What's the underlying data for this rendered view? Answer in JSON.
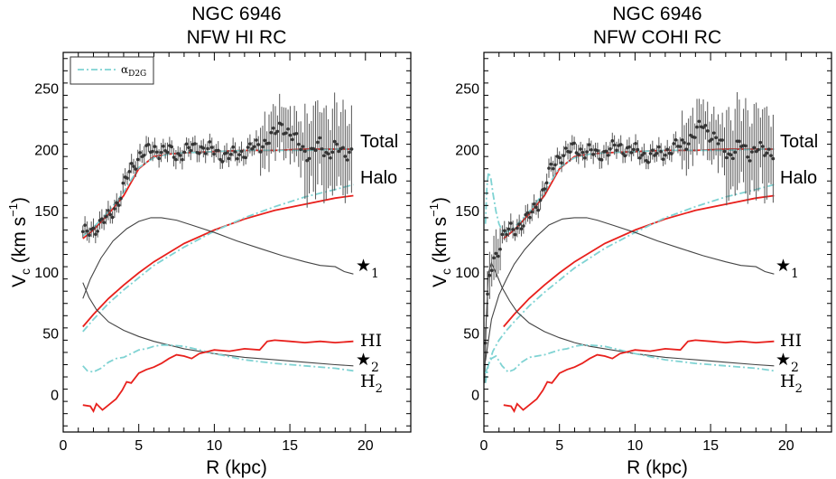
{
  "chart_data": [
    {
      "type": "line",
      "title_line1": "NGC 6946",
      "title_line2": "NFW HI RC",
      "xlabel": "R (kpc)",
      "ylabel": "V",
      "ylabel_sub": "c",
      "ylabel_units": " (km s",
      "ylabel_exp": "−1",
      "ylabel_close": ")",
      "xlim": [
        0,
        23
      ],
      "ylim": [
        -30,
        280
      ],
      "xticks": [
        "0",
        "5",
        "10",
        "15",
        "20"
      ],
      "yticks": [
        "0",
        "50",
        "100",
        "150",
        "200",
        "250"
      ],
      "legend": {
        "label": "α",
        "label_sub": "D2G",
        "color": "#7fd3d3",
        "position": "top-left"
      },
      "annotations": {
        "total": "Total",
        "halo": "Halo",
        "star1": "★",
        "star1_sub": "1",
        "star2": "★",
        "star2_sub": "2",
        "hi": "HI",
        "h2": "H",
        "h2_sub": "2"
      },
      "colors": {
        "fit_red": "#e8201c",
        "fit_teal": "#7fd3d3",
        "component": "#444444",
        "data": "#333333"
      },
      "data_points": {
        "x_start": 1.3,
        "x_end": 19.2,
        "step": 0.14
      },
      "series": [
        {
          "name": "Total (red)",
          "color": "#e8201c",
          "x": [
            1.3,
            2,
            3,
            4,
            5,
            6,
            7,
            8,
            10,
            12,
            14,
            16,
            18,
            19.2
          ],
          "y": [
            128,
            135,
            148,
            163,
            185,
            195,
            197,
            198,
            199,
            200,
            200,
            201,
            201,
            201
          ]
        },
        {
          "name": "Total (α_D2G)",
          "color": "#7fd3d3",
          "dash": true,
          "x": [
            1.3,
            2,
            3,
            4,
            5,
            6,
            7,
            8,
            10,
            12,
            14,
            16,
            18,
            19.2
          ],
          "y": [
            130,
            137,
            150,
            166,
            186,
            194,
            197,
            198,
            199,
            200,
            200,
            200,
            201,
            201
          ]
        },
        {
          "name": "Halo (red)",
          "color": "#e8201c",
          "x": [
            1.3,
            2,
            3,
            4,
            5,
            6,
            8,
            10,
            12,
            14,
            16,
            18,
            19.2
          ],
          "y": [
            56,
            66,
            79,
            90,
            100,
            109,
            124,
            135,
            144,
            151,
            156,
            161,
            163
          ]
        },
        {
          "name": "Halo (α_D2G)",
          "color": "#7fd3d3",
          "dash": true,
          "x": [
            1.3,
            2,
            3,
            4,
            5,
            6,
            8,
            10,
            12,
            14,
            16,
            18,
            19.2
          ],
          "y": [
            52,
            62,
            75,
            86,
            96,
            106,
            121,
            134,
            145,
            154,
            162,
            168,
            172
          ]
        },
        {
          "name": "Stellar disk 1",
          "color": "#444444",
          "x": [
            1.3,
            1.8,
            2.5,
            3.3,
            4.2,
            5,
            5.8,
            6.5,
            7.5,
            8.5,
            10,
            11.5,
            13,
            14.5,
            16,
            17,
            18,
            18.6,
            19.2
          ],
          "y": [
            79,
            95,
            112,
            126,
            136,
            142,
            145,
            145,
            143,
            139,
            133,
            126,
            120,
            114,
            109,
            106,
            105,
            101,
            99
          ]
        },
        {
          "name": "Stellar bulge 2",
          "color": "#444444",
          "x": [
            1.3,
            1.7,
            2.2,
            3,
            4,
            5,
            6,
            7,
            8,
            10,
            12,
            14,
            16,
            18,
            19.2
          ],
          "y": [
            92,
            80,
            70,
            60,
            53,
            48,
            44,
            41,
            38,
            34,
            31,
            29,
            27,
            25,
            24
          ]
        },
        {
          "name": "H2 (α_D2G)",
          "color": "#7fd3d3",
          "dash": true,
          "x": [
            1.3,
            1.6,
            2,
            2.5,
            3,
            3.5,
            4,
            4.5,
            5,
            5.5,
            6,
            6.5,
            7,
            8,
            9,
            10,
            12,
            14,
            16,
            18,
            19.2
          ],
          "y": [
            24,
            20,
            19,
            22,
            27,
            30,
            31,
            34,
            37,
            38,
            40,
            41,
            41,
            40,
            37,
            34,
            29,
            26,
            24,
            22,
            20
          ]
        },
        {
          "name": "HI (red)",
          "color": "#e8201c",
          "x": [
            1.3,
            1.8,
            2,
            2.2,
            2.6,
            3,
            3.5,
            3.9,
            4.2,
            4.5,
            5,
            5.5,
            6,
            6.5,
            7,
            7.5,
            8,
            8.5,
            9,
            10,
            11,
            12,
            13,
            13.5,
            14,
            15,
            16,
            17,
            18,
            19.2
          ],
          "y": [
            -8,
            -9,
            -13,
            -7,
            -12,
            -8,
            -3,
            4,
            11,
            10,
            18,
            21,
            23,
            26,
            30,
            33,
            32,
            30,
            34,
            37,
            36,
            38,
            37,
            44,
            45,
            44,
            43,
            44,
            43,
            44
          ]
        }
      ]
    },
    {
      "type": "line",
      "title_line1": "NGC 6946",
      "title_line2": "NFW COHI RC",
      "xlabel": "R (kpc)",
      "ylabel": "V",
      "ylabel_sub": "c",
      "ylabel_units": " (km s",
      "ylabel_exp": "−1",
      "ylabel_close": ")",
      "xlim": [
        0,
        23
      ],
      "ylim": [
        -30,
        280
      ],
      "xticks": [
        "0",
        "5",
        "10",
        "15",
        "20"
      ],
      "yticks": [
        "0",
        "50",
        "100",
        "150",
        "200",
        "250"
      ],
      "annotations": {
        "total": "Total",
        "halo": "Halo",
        "star1": "★",
        "star1_sub": "1",
        "star2": "★",
        "star2_sub": "2",
        "hi": "HI",
        "h2": "H",
        "h2_sub": "2"
      },
      "colors": {
        "fit_red": "#e8201c",
        "fit_teal": "#7fd3d3",
        "component": "#444444",
        "data": "#333333"
      },
      "data_points": {
        "x_start": 0.1,
        "x_end": 19.2,
        "step": 0.14
      },
      "series": [
        {
          "name": "Total (red)",
          "color": "#e8201c",
          "x": [
            1.3,
            2,
            3,
            4,
            5,
            6,
            7,
            8,
            10,
            12,
            14,
            16,
            18,
            19.2
          ],
          "y": [
            128,
            135,
            148,
            163,
            185,
            195,
            197,
            198,
            199,
            200,
            200,
            201,
            201,
            201
          ]
        },
        {
          "name": "Total (α_D2G)",
          "color": "#7fd3d3",
          "dash": true,
          "x": [
            0.1,
            0.2,
            0.3,
            0.45,
            0.6,
            0.8,
            1.0,
            1.3,
            2,
            3,
            4,
            5,
            6,
            7,
            8,
            10,
            12,
            14,
            16,
            18,
            19.2
          ],
          "y": [
            140,
            170,
            182,
            178,
            165,
            150,
            140,
            132,
            137,
            150,
            166,
            186,
            194,
            197,
            198,
            199,
            200,
            200,
            200,
            201,
            201
          ]
        },
        {
          "name": "Halo (red)",
          "color": "#e8201c",
          "x": [
            1.3,
            2,
            3,
            4,
            5,
            6,
            8,
            10,
            12,
            14,
            16,
            18,
            19.2
          ],
          "y": [
            56,
            66,
            79,
            90,
            100,
            109,
            124,
            135,
            144,
            151,
            156,
            161,
            163
          ]
        },
        {
          "name": "Halo (α_D2G)",
          "color": "#7fd3d3",
          "dash": true,
          "x": [
            0.1,
            0.3,
            0.6,
            1,
            1.5,
            2,
            3,
            4,
            5,
            6,
            8,
            10,
            12,
            14,
            16,
            18,
            19.2
          ],
          "y": [
            10,
            25,
            36,
            45,
            53,
            60,
            73,
            84,
            94,
            104,
            120,
            133,
            145,
            154,
            162,
            168,
            172
          ]
        },
        {
          "name": "Stellar disk 1",
          "color": "#444444",
          "x": [
            0.1,
            0.5,
            1.0,
            1.5,
            2.0,
            2.7,
            3.5,
            4.3,
            5.2,
            6,
            6.8,
            7.5,
            8.5,
            10,
            11.5,
            13,
            14.5,
            16,
            17,
            18,
            18.6,
            19.2
          ],
          "y": [
            28,
            62,
            82,
            95,
            107,
            119,
            130,
            139,
            144,
            145,
            145,
            143,
            139,
            133,
            126,
            120,
            114,
            109,
            106,
            105,
            101,
            99
          ]
        },
        {
          "name": "Stellar bulge 2",
          "color": "#444444",
          "x": [
            0.05,
            0.15,
            0.3,
            0.5,
            0.8,
            1.2,
            1.7,
            2.2,
            3,
            4,
            5,
            6,
            7,
            8,
            10,
            12,
            14,
            16,
            18,
            19.2
          ],
          "y": [
            10,
            60,
            100,
            108,
            100,
            88,
            77,
            68,
            59,
            52,
            47,
            43,
            40,
            38,
            34,
            31,
            29,
            27,
            25,
            24
          ]
        },
        {
          "name": "H2 (α_D2G)",
          "color": "#7fd3d3",
          "dash": true,
          "x": [
            0.1,
            0.3,
            0.5,
            0.8,
            1.2,
            1.6,
            2,
            2.5,
            3,
            3.5,
            4,
            4.5,
            5,
            5.5,
            6,
            6.5,
            7,
            8,
            9,
            10,
            12,
            14,
            16,
            18,
            19.2
          ],
          "y": [
            18,
            25,
            30,
            32,
            24,
            19,
            21,
            27,
            31,
            32,
            33,
            35,
            37,
            38,
            40,
            41,
            41,
            40,
            37,
            34,
            29,
            26,
            24,
            22,
            20
          ]
        },
        {
          "name": "HI (red)",
          "color": "#e8201c",
          "x": [
            1.3,
            1.8,
            2,
            2.2,
            2.6,
            3,
            3.5,
            3.9,
            4.2,
            4.5,
            5,
            5.5,
            6,
            6.5,
            7,
            7.5,
            8,
            8.5,
            9,
            10,
            11,
            12,
            13,
            13.5,
            14,
            15,
            16,
            17,
            18,
            19.2
          ],
          "y": [
            -8,
            -9,
            -13,
            -7,
            -12,
            -8,
            -3,
            4,
            11,
            10,
            18,
            21,
            23,
            26,
            30,
            33,
            32,
            30,
            34,
            37,
            36,
            38,
            37,
            44,
            45,
            44,
            43,
            44,
            43,
            44
          ]
        }
      ]
    }
  ]
}
